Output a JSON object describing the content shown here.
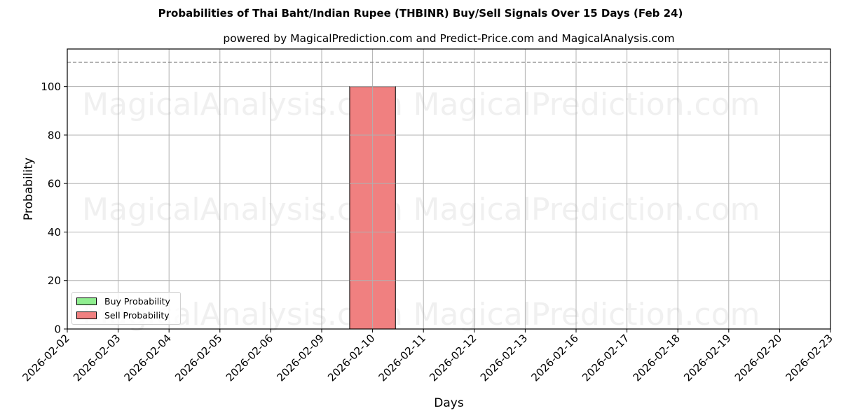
{
  "chart_data": {
    "type": "bar",
    "title": "Probabilities of Thai Baht/Indian Rupee (THBINR) Buy/Sell Signals Over 15 Days (Feb 24)",
    "subtitle": "powered by MagicalPrediction.com and Predict-Price.com and MagicalAnalysis.com",
    "xlabel": "Days",
    "ylabel": "Probability",
    "ylim": [
      0,
      115.5
    ],
    "yticks": [
      0,
      20,
      40,
      60,
      80,
      100
    ],
    "grid": true,
    "legend_position": "lower left",
    "categories": [
      "2026-02-02",
      "2026-02-03",
      "2026-02-04",
      "2026-02-05",
      "2026-02-06",
      "2026-02-09",
      "2026-02-10",
      "2026-02-11",
      "2026-02-12",
      "2026-02-13",
      "2026-02-16",
      "2026-02-17",
      "2026-02-18",
      "2026-02-19",
      "2026-02-20",
      "2026-02-23"
    ],
    "series": [
      {
        "name": "Buy Probability",
        "color": "#90ee90",
        "values": [
          0,
          0,
          0,
          0,
          0,
          0,
          0,
          0,
          0,
          0,
          0,
          0,
          0,
          0,
          0,
          0
        ]
      },
      {
        "name": "Sell Probability",
        "color": "#f08080",
        "values": [
          0,
          0,
          0,
          0,
          0,
          0,
          100,
          0,
          0,
          0,
          0,
          0,
          0,
          0,
          0,
          0
        ]
      }
    ],
    "annotations": [
      {
        "type": "hline",
        "y": 110,
        "style": "dashed",
        "color": "#808080"
      }
    ],
    "watermarks": [
      "MagicalAnalysis.com",
      "MagicalPrediction.com"
    ]
  }
}
